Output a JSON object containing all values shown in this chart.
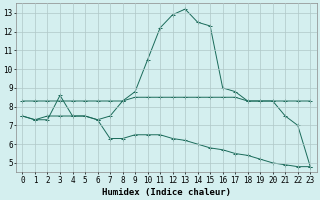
{
  "title": "",
  "xlabel": "Humidex (Indice chaleur)",
  "ylabel": "",
  "xlim": [
    -0.5,
    23.5
  ],
  "ylim": [
    4.5,
    13.5
  ],
  "xticks": [
    0,
    1,
    2,
    3,
    4,
    5,
    6,
    7,
    8,
    9,
    10,
    11,
    12,
    13,
    14,
    15,
    16,
    17,
    18,
    19,
    20,
    21,
    22,
    23
  ],
  "yticks": [
    5,
    6,
    7,
    8,
    9,
    10,
    11,
    12,
    13
  ],
  "background_color": "#d4efef",
  "grid_color": "#b0c8c8",
  "line_color": "#1a6b5a",
  "line1_x": [
    0,
    1,
    2,
    3,
    4,
    5,
    6,
    7,
    8,
    9,
    10,
    11,
    12,
    13,
    14,
    15,
    16,
    17,
    18,
    19,
    20,
    21,
    22,
    23
  ],
  "line1_y": [
    7.5,
    7.3,
    7.3,
    8.6,
    7.5,
    7.5,
    7.3,
    7.5,
    8.3,
    8.8,
    10.5,
    12.2,
    12.9,
    13.2,
    12.5,
    12.3,
    9.0,
    8.8,
    8.3,
    8.3,
    8.3,
    7.5,
    7.0,
    4.8
  ],
  "line2_x": [
    0,
    1,
    2,
    3,
    4,
    5,
    6,
    7,
    8,
    9,
    10,
    11,
    12,
    13,
    14,
    15,
    16,
    17,
    18,
    19,
    20,
    21,
    22,
    23
  ],
  "line2_y": [
    8.3,
    8.3,
    8.3,
    8.3,
    8.3,
    8.3,
    8.3,
    8.3,
    8.3,
    8.5,
    8.5,
    8.5,
    8.5,
    8.5,
    8.5,
    8.5,
    8.5,
    8.5,
    8.3,
    8.3,
    8.3,
    8.3,
    8.3,
    8.3
  ],
  "line3_x": [
    0,
    1,
    2,
    3,
    4,
    5,
    6,
    7,
    8,
    9,
    10,
    11,
    12,
    13,
    14,
    15,
    16,
    17,
    18,
    19,
    20,
    21,
    22,
    23
  ],
  "line3_y": [
    7.5,
    7.3,
    7.5,
    7.5,
    7.5,
    7.5,
    7.3,
    6.3,
    6.3,
    6.5,
    6.5,
    6.5,
    6.3,
    6.2,
    6.0,
    5.8,
    5.7,
    5.5,
    5.4,
    5.2,
    5.0,
    4.9,
    4.8,
    4.8
  ],
  "xlabel_fontsize": 6.5,
  "tick_fontsize": 5.5
}
